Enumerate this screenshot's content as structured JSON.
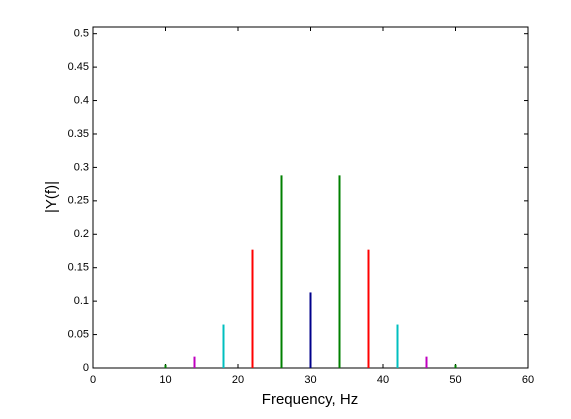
{
  "chart_data": {
    "type": "stem",
    "x_label": "Frequency, Hz",
    "y_label": "|Y(f)|",
    "xlim": [
      0,
      60
    ],
    "xticks": [
      0,
      10,
      20,
      30,
      40,
      50,
      60
    ],
    "ylim": [
      0,
      0.51
    ],
    "yticks": [
      0,
      0.05,
      0.1,
      0.15,
      0.2,
      0.25,
      0.3,
      0.35,
      0.4,
      0.45,
      0.5
    ],
    "grid": false,
    "series": [
      {
        "color": "#008000",
        "x": [
          10,
          26,
          34,
          50
        ],
        "values": [
          0.005,
          0.288,
          0.288,
          0.005
        ]
      },
      {
        "color": "#bf00bf",
        "x": [
          14,
          46
        ],
        "values": [
          0.017,
          0.017
        ]
      },
      {
        "color": "#00bfbf",
        "x": [
          18,
          42
        ],
        "values": [
          0.065,
          0.065
        ]
      },
      {
        "color": "#ff0000",
        "x": [
          22,
          38
        ],
        "values": [
          0.177,
          0.177
        ]
      },
      {
        "color": "#00008b",
        "x": [
          30
        ],
        "values": [
          0.113
        ]
      }
    ]
  }
}
